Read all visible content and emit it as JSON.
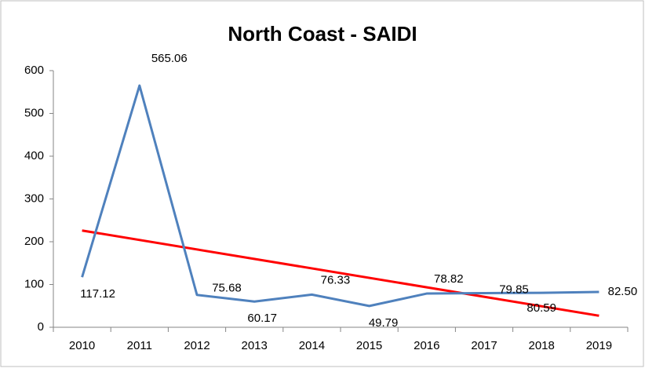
{
  "chart_data": {
    "type": "line",
    "title": "North Coast - SAIDI",
    "categories": [
      "2010",
      "2011",
      "2012",
      "2013",
      "2014",
      "2015",
      "2016",
      "2017",
      "2018",
      "2019"
    ],
    "series": [
      {
        "color": "#4f81bd",
        "values": [
          117.12,
          565.06,
          75.68,
          60.17,
          76.33,
          49.79,
          78.82,
          79.85,
          80.59,
          82.5
        ],
        "value_labels": [
          "117.12",
          "565.06",
          "75.68",
          "60.17",
          "76.33",
          "49.79",
          "78.82",
          "79.85",
          "80.59",
          "82.50"
        ]
      }
    ],
    "trend": {
      "color": "#ff0000",
      "start": 226.2,
      "end": 27.0
    },
    "ylim": [
      0,
      600
    ],
    "yticks": [
      0,
      100,
      200,
      300,
      400,
      500,
      600
    ],
    "grid": false
  }
}
